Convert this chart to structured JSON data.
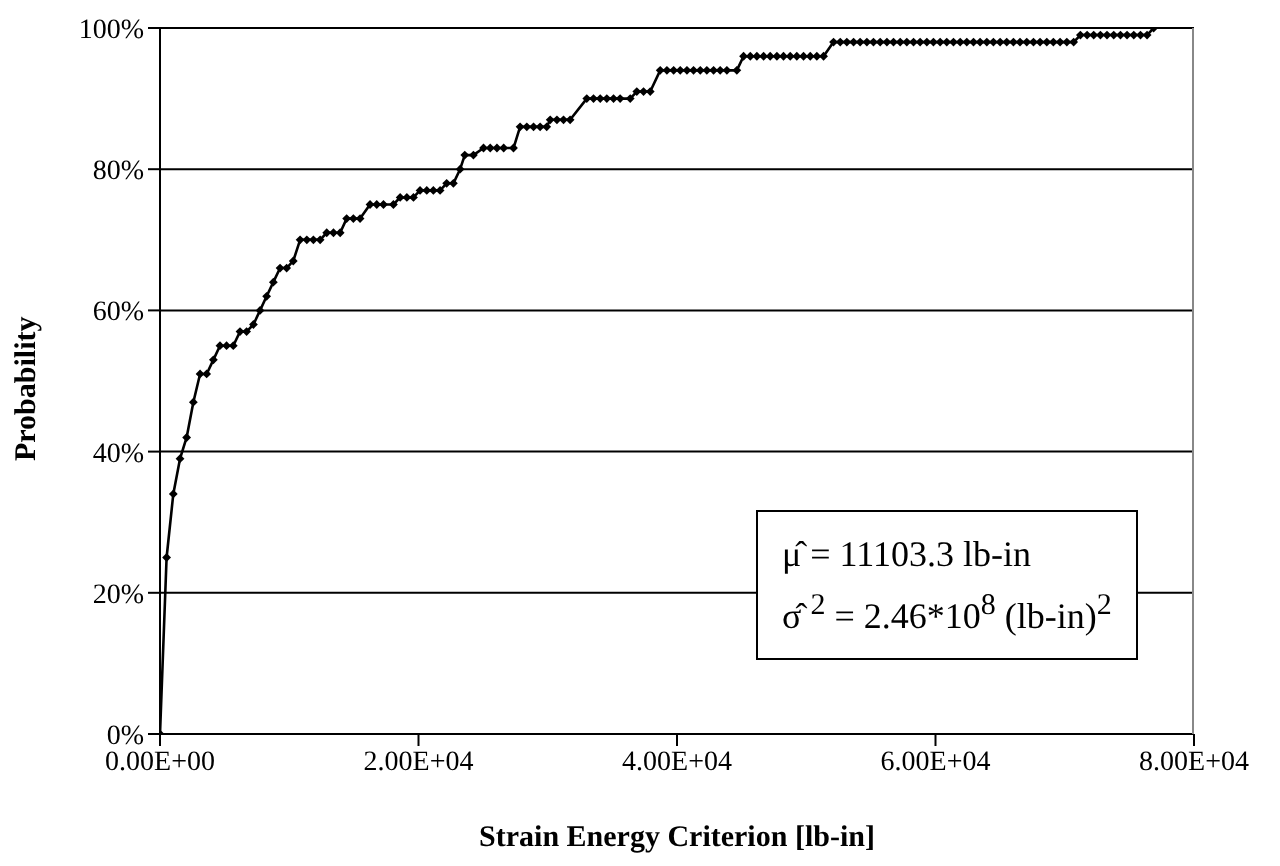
{
  "chart_data": {
    "type": "line",
    "xlabel": "Strain Energy Criterion [lb-in]",
    "ylabel": "Probability",
    "annotations": [
      "μ̂  = 11103.3 lb-in",
      "σ̂ $^{2}$ = 2.46*10$^{8}$ (lb-in)$^{2}$"
    ],
    "x": [
      0,
      510,
      1030,
      1550,
      2060,
      2580,
      3100,
      3610,
      4130,
      4640,
      5150,
      5670,
      6190,
      6700,
      7230,
      7740,
      8250,
      8770,
      9290,
      9800,
      10310,
      10840,
      11360,
      11870,
      12390,
      12900,
      13420,
      13940,
      14440,
      14960,
      15480,
      16250,
      16770,
      17290,
      18060,
      18580,
      19100,
      19610,
      20120,
      20640,
      21150,
      21670,
      22180,
      22700,
      23220,
      23580,
      24250,
      25030,
      25550,
      26070,
      26590,
      27350,
      27860,
      28380,
      28900,
      29410,
      29920,
      30190,
      30710,
      31220,
      31730,
      33020,
      33540,
      34060,
      34570,
      35090,
      35600,
      36380,
      36890,
      37410,
      37930,
      38700,
      39220,
      39740,
      40250,
      40770,
      41280,
      41800,
      42310,
      42830,
      43340,
      43860,
      44630,
      45150,
      45670,
      46180,
      46700,
      47210,
      47730,
      48240,
      48760,
      49270,
      49790,
      50310,
      50820,
      51340,
      52110,
      52630,
      53140,
      53660,
      54170,
      54690,
      55200,
      55720,
      56240,
      56750,
      57270,
      57780,
      58300,
      58810,
      59330,
      59840,
      60360,
      60870,
      61390,
      61910,
      62420,
      62940,
      63450,
      63970,
      64480,
      65000,
      65510,
      66030,
      66540,
      67060,
      67580,
      68090,
      68610,
      69120,
      69640,
      70160,
      70690,
      71210,
      71730,
      72240,
      72760,
      73270,
      73790,
      74310,
      74820,
      75340,
      75860,
      76370,
      76880
    ],
    "series": [
      {
        "color": "#000000",
        "values": [
          0,
          25,
          34,
          39,
          42,
          47,
          51,
          51,
          53,
          55,
          55,
          55,
          57,
          57,
          58,
          60,
          62,
          64,
          66,
          66,
          67,
          70,
          70,
          70,
          70,
          71,
          71,
          71,
          73,
          73,
          73,
          75,
          75,
          75,
          75,
          76,
          76,
          76,
          77,
          77,
          77,
          77,
          78,
          78,
          80,
          82,
          82,
          83,
          83,
          83,
          83,
          83,
          86,
          86,
          86,
          86,
          86,
          87,
          87,
          87,
          87,
          90,
          90,
          90,
          90,
          90,
          90,
          90,
          91,
          91,
          91,
          94,
          94,
          94,
          94,
          94,
          94,
          94,
          94,
          94,
          94,
          94,
          94,
          96,
          96,
          96,
          96,
          96,
          96,
          96,
          96,
          96,
          96,
          96,
          96,
          96,
          98,
          98,
          98,
          98,
          98,
          98,
          98,
          98,
          98,
          98,
          98,
          98,
          98,
          98,
          98,
          98,
          98,
          98,
          98,
          98,
          98,
          98,
          98,
          98,
          98,
          98,
          98,
          98,
          98,
          98,
          98,
          98,
          98,
          98,
          98,
          98,
          98,
          99,
          99,
          99,
          99,
          99,
          99,
          99,
          99,
          99,
          99,
          99,
          100
        ]
      }
    ],
    "xlim": [
      0,
      80000
    ],
    "xticks": [
      {
        "value": 0,
        "label": "0.00E+00"
      },
      {
        "value": 20000,
        "label": "2.00E+04"
      },
      {
        "value": 40000,
        "label": "4.00E+04"
      },
      {
        "value": 60000,
        "label": "6.00E+04"
      },
      {
        "value": 80000,
        "label": "8.00E+04"
      }
    ],
    "ylim": [
      0,
      100
    ],
    "yticks": [
      {
        "value": 0,
        "label": "0%"
      },
      {
        "value": 20,
        "label": "20%"
      },
      {
        "value": 40,
        "label": "40%"
      },
      {
        "value": 60,
        "label": "60%"
      },
      {
        "value": 80,
        "label": "80%"
      },
      {
        "value": 100,
        "label": "100%"
      }
    ],
    "grid": "y",
    "marker": "diamond",
    "line_style": "solid"
  }
}
